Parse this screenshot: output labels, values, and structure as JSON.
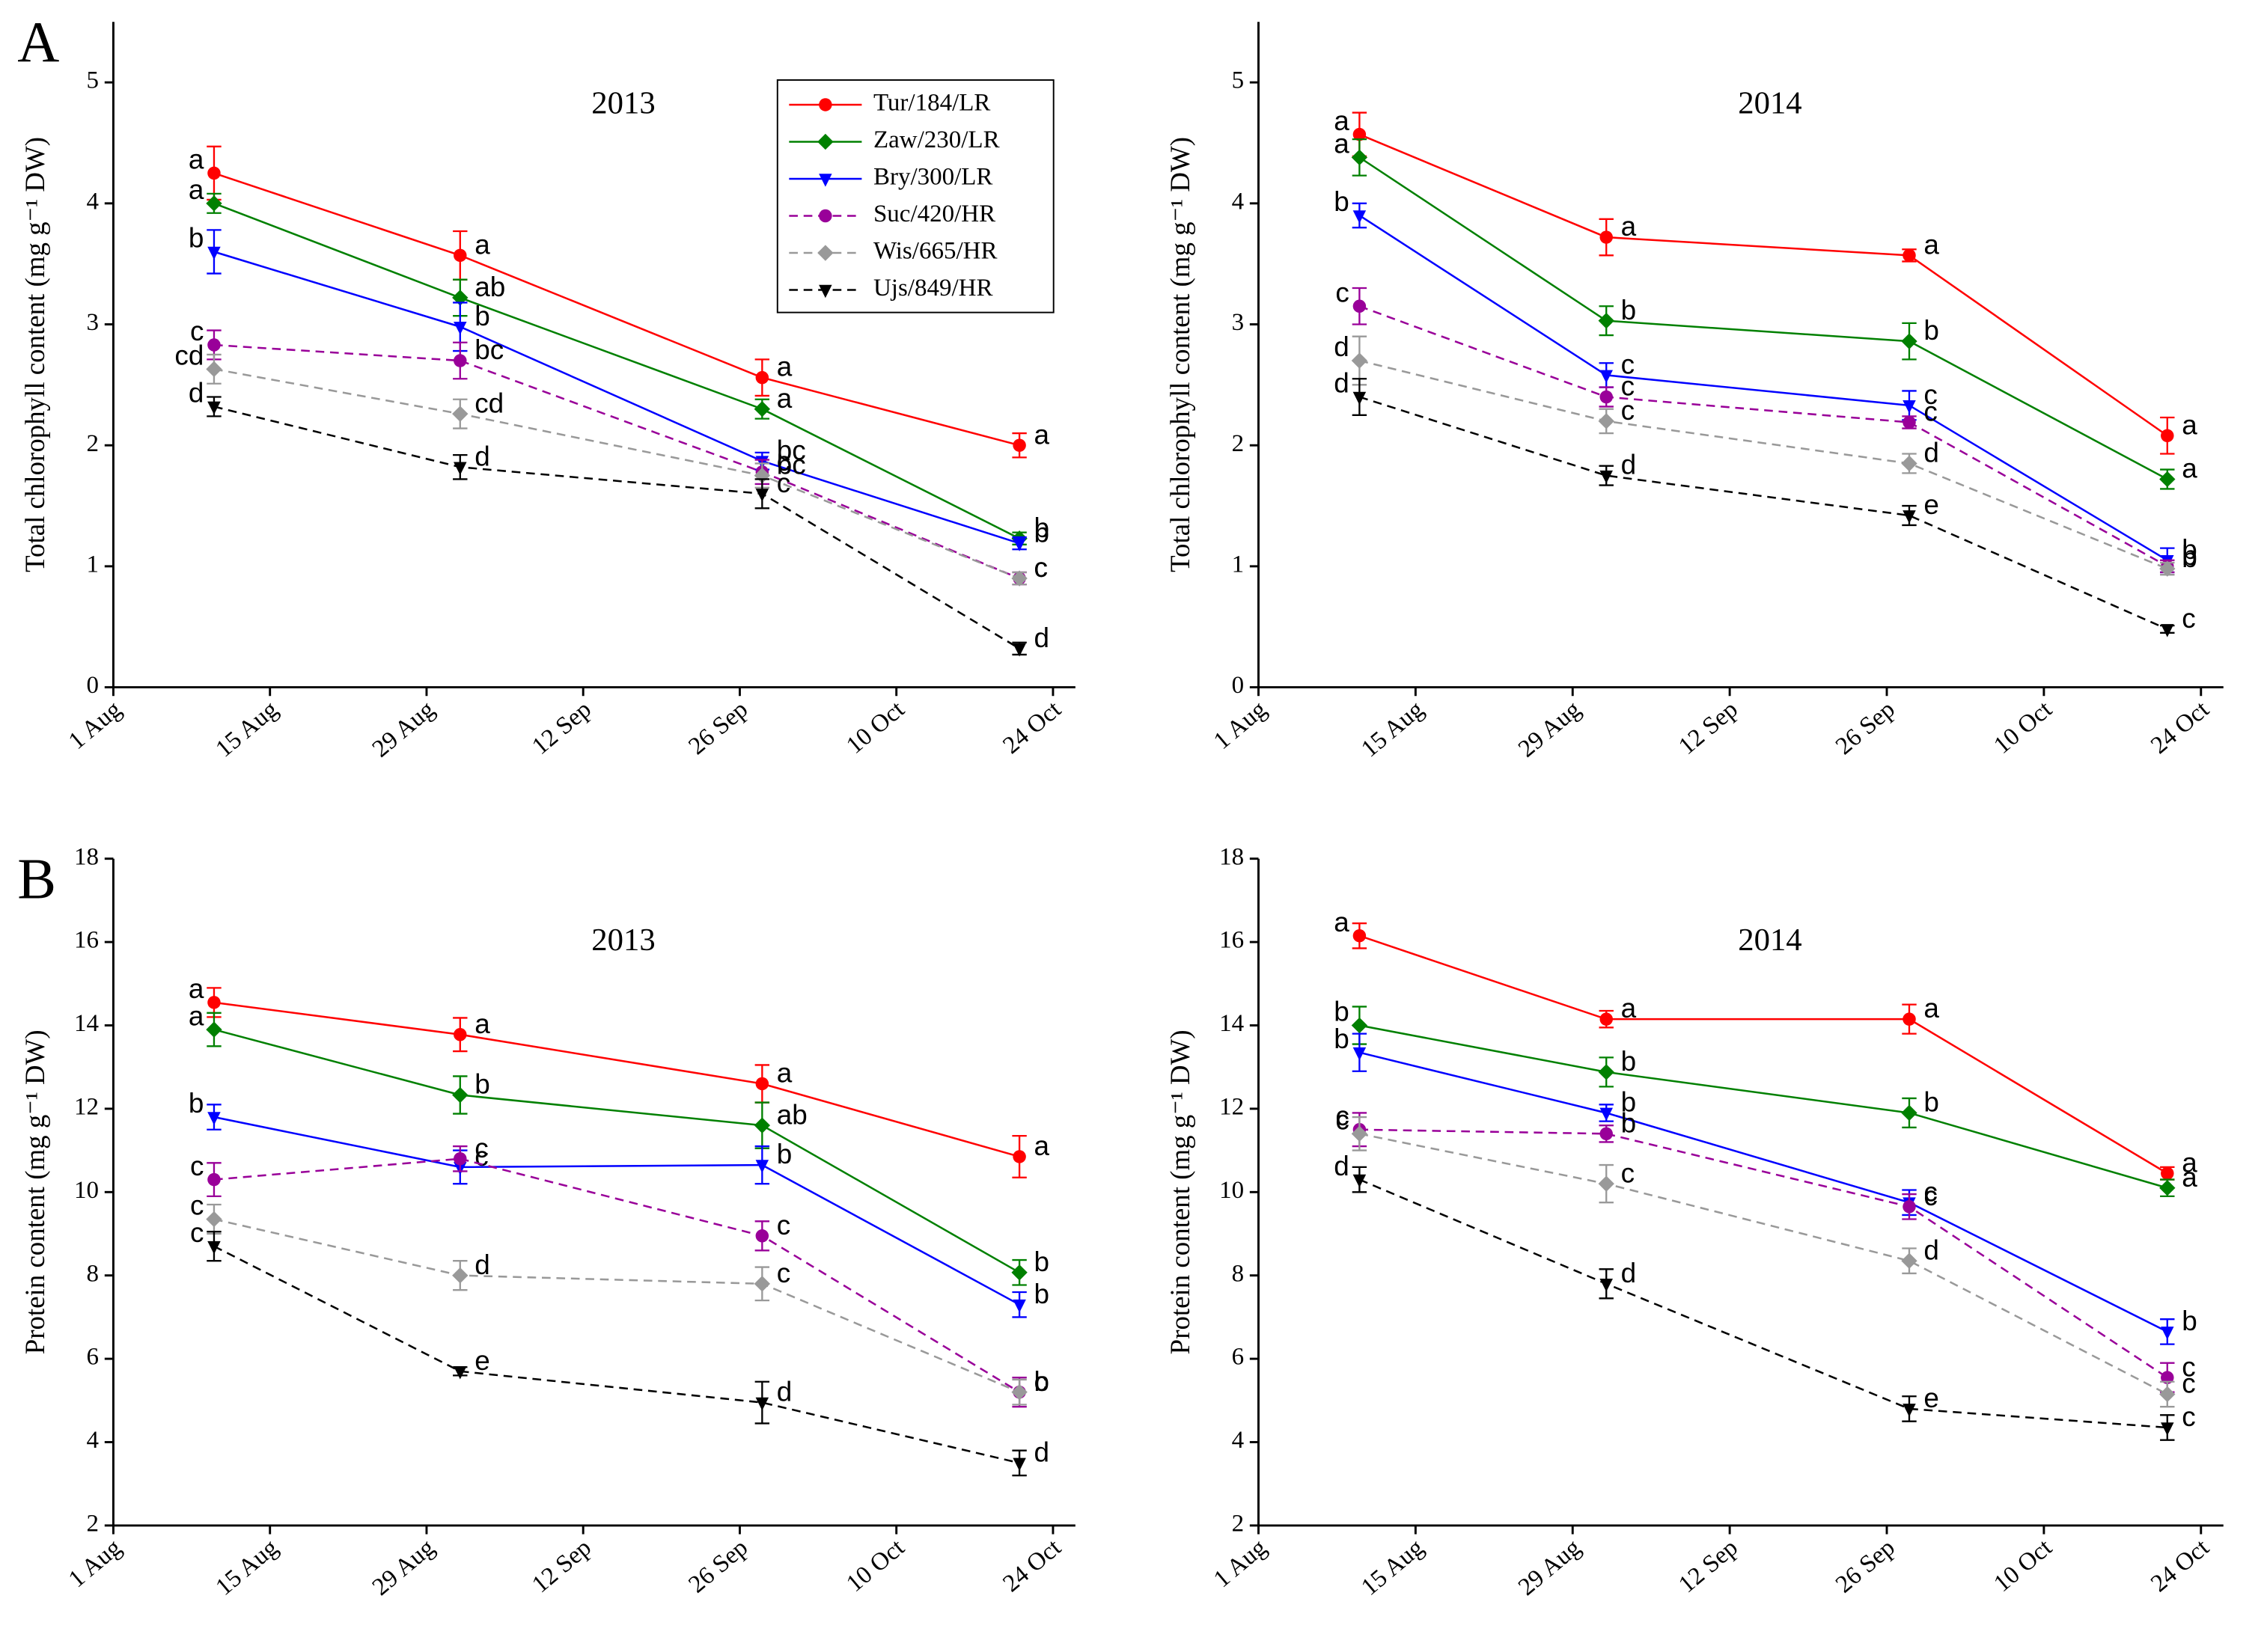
{
  "chart_data": [
    {
      "type": "line",
      "panel": "A",
      "title": "2013",
      "y_label": "Total chlorophyll content (mg g⁻¹ DW)",
      "legend": "upper right",
      "x": [
        "2013-08-10",
        "2013-09-01",
        "2013-09-28",
        "2013-10-21"
      ],
      "xlim": [
        "2013-08-01",
        "2013-10-26"
      ],
      "xticks": [
        {
          "value": "2013-08-01",
          "label": "1 Aug"
        },
        {
          "value": "2013-08-15",
          "label": "15 Aug"
        },
        {
          "value": "2013-08-29",
          "label": "29 Aug"
        },
        {
          "value": "2013-09-12",
          "label": "12 Sep"
        },
        {
          "value": "2013-09-26",
          "label": "26 Sep"
        },
        {
          "value": "2013-10-10",
          "label": "10 Oct"
        },
        {
          "value": "2013-10-24",
          "label": "24 Oct"
        }
      ],
      "ylim": [
        0,
        5.5
      ],
      "yticks": [
        0,
        1,
        2,
        3,
        4,
        5
      ],
      "series": [
        {
          "name": "Tur/184/LR",
          "color": "#ff0000",
          "marker": "circle",
          "line_style": "solid",
          "values": [
            4.25,
            3.57,
            2.56,
            2.0
          ],
          "errors": [
            0.22,
            0.2,
            0.15,
            0.1
          ],
          "letters": [
            "a",
            "a",
            "a",
            "a"
          ]
        },
        {
          "name": "Zaw/230/LR",
          "color": "#008000",
          "marker": "diamond",
          "line_style": "solid",
          "values": [
            4.0,
            3.22,
            2.3,
            1.23
          ],
          "errors": [
            0.08,
            0.15,
            0.08,
            0.05
          ],
          "letters": [
            "a",
            "ab",
            "a",
            "b"
          ]
        },
        {
          "name": "Bry/300/LR",
          "color": "#0000ff",
          "marker": "triangle-down",
          "line_style": "solid",
          "values": [
            3.6,
            2.98,
            1.87,
            1.19
          ],
          "errors": [
            0.18,
            0.2,
            0.07,
            0.05
          ],
          "letters": [
            "b",
            "b",
            "bc",
            "b"
          ]
        },
        {
          "name": "Suc/420/HR",
          "color": "#990099",
          "marker": "circle",
          "line_style": "dashed",
          "values": [
            2.83,
            2.7,
            1.78,
            0.9
          ],
          "errors": [
            0.12,
            0.15,
            0.1,
            0.05
          ],
          "letters": [
            "c",
            "bc",
            "c",
            "c"
          ]
        },
        {
          "name": "Wis/665/HR",
          "color": "#999999",
          "marker": "diamond",
          "line_style": "dashed",
          "values": [
            2.63,
            2.26,
            1.75,
            0.9
          ],
          "errors": [
            0.12,
            0.12,
            0.1,
            0.05
          ],
          "letters": [
            "cd",
            "cd",
            "bc",
            "c"
          ]
        },
        {
          "name": "Ujs/849/HR",
          "color": "#000000",
          "marker": "triangle-down",
          "line_style": "dashed",
          "values": [
            2.32,
            1.82,
            1.6,
            0.32
          ],
          "errors": [
            0.08,
            0.1,
            0.12,
            0.05
          ],
          "letters": [
            "d",
            "d",
            "c",
            "d"
          ]
        }
      ]
    },
    {
      "type": "line",
      "title": "2014",
      "y_label": "Total chlorophyll content (mg g⁻¹ DW)",
      "x": [
        "2014-08-10",
        "2014-09-01",
        "2014-09-28",
        "2014-10-21"
      ],
      "xlim": [
        "2014-08-01",
        "2014-10-26"
      ],
      "xticks": [
        {
          "value": "2014-08-01",
          "label": "1 Aug"
        },
        {
          "value": "2014-08-15",
          "label": "15 Aug"
        },
        {
          "value": "2014-08-29",
          "label": "29 Aug"
        },
        {
          "value": "2014-09-12",
          "label": "12 Sep"
        },
        {
          "value": "2014-09-26",
          "label": "26 Sep"
        },
        {
          "value": "2014-10-10",
          "label": "10 Oct"
        },
        {
          "value": "2014-10-24",
          "label": "24 Oct"
        }
      ],
      "ylim": [
        0,
        5.5
      ],
      "yticks": [
        0,
        1,
        2,
        3,
        4,
        5
      ],
      "series": [
        {
          "name": "Tur/184/LR",
          "color": "#ff0000",
          "marker": "circle",
          "line_style": "solid",
          "values": [
            4.57,
            3.72,
            3.57,
            2.08
          ],
          "errors": [
            0.18,
            0.15,
            0.05,
            0.15
          ],
          "letters": [
            "a",
            "a",
            "a",
            "a"
          ]
        },
        {
          "name": "Zaw/230/LR",
          "color": "#008000",
          "marker": "diamond",
          "line_style": "solid",
          "values": [
            4.38,
            3.03,
            2.86,
            1.72
          ],
          "errors": [
            0.15,
            0.12,
            0.15,
            0.08
          ],
          "letters": [
            "a",
            "b",
            "b",
            "a"
          ]
        },
        {
          "name": "Bry/300/LR",
          "color": "#0000ff",
          "marker": "triangle-down",
          "line_style": "solid",
          "values": [
            3.9,
            2.58,
            2.33,
            1.05
          ],
          "errors": [
            0.1,
            0.1,
            0.12,
            0.1
          ],
          "letters": [
            "b",
            "c",
            "c",
            "b"
          ]
        },
        {
          "name": "Suc/420/HR",
          "color": "#990099",
          "marker": "circle",
          "line_style": "dashed",
          "values": [
            3.15,
            2.4,
            2.19,
            1.0
          ],
          "errors": [
            0.15,
            0.08,
            0.05,
            0.05
          ],
          "letters": [
            "c",
            "c",
            "c",
            "b"
          ]
        },
        {
          "name": "Wis/665/HR",
          "color": "#999999",
          "marker": "diamond",
          "line_style": "dashed",
          "values": [
            2.7,
            2.2,
            1.85,
            0.98
          ],
          "errors": [
            0.2,
            0.1,
            0.08,
            0.05
          ],
          "letters": [
            "d",
            "c",
            "d",
            "b"
          ]
        },
        {
          "name": "Ujs/849/HR",
          "color": "#000000",
          "marker": "triangle-down",
          "line_style": "dashed",
          "values": [
            2.4,
            1.75,
            1.42,
            0.48
          ],
          "errors": [
            0.15,
            0.08,
            0.08,
            0.03
          ],
          "letters": [
            "d",
            "d",
            "e",
            "c"
          ]
        }
      ]
    },
    {
      "type": "line",
      "panel": "B",
      "title": "2013",
      "y_label": "Protein content (mg g⁻¹ DW)",
      "x": [
        "2013-08-10",
        "2013-09-01",
        "2013-09-28",
        "2013-10-21"
      ],
      "xlim": [
        "2013-08-01",
        "2013-10-26"
      ],
      "xticks": [
        {
          "value": "2013-08-01",
          "label": "1 Aug"
        },
        {
          "value": "2013-08-15",
          "label": "15 Aug"
        },
        {
          "value": "2013-08-29",
          "label": "29 Aug"
        },
        {
          "value": "2013-09-12",
          "label": "12 Sep"
        },
        {
          "value": "2013-09-26",
          "label": "26 Sep"
        },
        {
          "value": "2013-10-10",
          "label": "10 Oct"
        },
        {
          "value": "2013-10-24",
          "label": "24 Oct"
        }
      ],
      "ylim": [
        2,
        18
      ],
      "yticks": [
        2,
        4,
        6,
        8,
        10,
        12,
        14,
        16,
        18
      ],
      "series": [
        {
          "name": "Tur/184/LR",
          "color": "#ff0000",
          "marker": "circle",
          "line_style": "solid",
          "values": [
            14.55,
            13.78,
            12.6,
            10.85
          ],
          "errors": [
            0.35,
            0.4,
            0.45,
            0.5
          ],
          "letters": [
            "a",
            "a",
            "a",
            "a"
          ]
        },
        {
          "name": "Zaw/230/LR",
          "color": "#008000",
          "marker": "diamond",
          "line_style": "solid",
          "values": [
            13.9,
            12.33,
            11.6,
            8.07
          ],
          "errors": [
            0.4,
            0.45,
            0.55,
            0.3
          ],
          "letters": [
            "a",
            "b",
            "ab",
            "b"
          ]
        },
        {
          "name": "Bry/300/LR",
          "color": "#0000ff",
          "marker": "triangle-down",
          "line_style": "solid",
          "values": [
            11.8,
            10.6,
            10.65,
            7.3
          ],
          "errors": [
            0.3,
            0.4,
            0.45,
            0.3
          ],
          "letters": [
            "b",
            "c",
            "b",
            "b"
          ]
        },
        {
          "name": "Suc/420/HR",
          "color": "#990099",
          "marker": "circle",
          "line_style": "dashed",
          "values": [
            10.3,
            10.8,
            8.95,
            5.2
          ],
          "errors": [
            0.4,
            0.3,
            0.35,
            0.35
          ],
          "letters": [
            "c",
            "c",
            "c",
            "b"
          ]
        },
        {
          "name": "Wis/665/HR",
          "color": "#999999",
          "marker": "diamond",
          "line_style": "dashed",
          "values": [
            9.35,
            8.0,
            7.8,
            5.2
          ],
          "errors": [
            0.35,
            0.35,
            0.4,
            0.3
          ],
          "letters": [
            "c",
            "d",
            "c",
            "c"
          ]
        },
        {
          "name": "Ujs/849/HR",
          "color": "#000000",
          "marker": "triangle-down",
          "line_style": "dashed",
          "values": [
            8.7,
            5.7,
            4.95,
            3.5
          ],
          "errors": [
            0.35,
            0.1,
            0.5,
            0.3
          ],
          "letters": [
            "c",
            "e",
            "d",
            "d"
          ]
        }
      ]
    },
    {
      "type": "line",
      "title": "2014",
      "y_label": "Protein content (mg g⁻¹ DW)",
      "x": [
        "2014-08-10",
        "2014-09-01",
        "2014-09-28",
        "2014-10-21"
      ],
      "xlim": [
        "2014-08-01",
        "2014-10-26"
      ],
      "xticks": [
        {
          "value": "2014-08-01",
          "label": "1 Aug"
        },
        {
          "value": "2014-08-15",
          "label": "15 Aug"
        },
        {
          "value": "2014-08-29",
          "label": "29 Aug"
        },
        {
          "value": "2014-09-12",
          "label": "12 Sep"
        },
        {
          "value": "2014-09-26",
          "label": "26 Sep"
        },
        {
          "value": "2014-10-10",
          "label": "10 Oct"
        },
        {
          "value": "2014-10-24",
          "label": "24 Oct"
        }
      ],
      "ylim": [
        2,
        18
      ],
      "yticks": [
        2,
        4,
        6,
        8,
        10,
        12,
        14,
        16,
        18
      ],
      "series": [
        {
          "name": "Tur/184/LR",
          "color": "#ff0000",
          "marker": "circle",
          "line_style": "solid",
          "values": [
            16.15,
            14.15,
            14.15,
            10.45
          ],
          "errors": [
            0.3,
            0.2,
            0.35,
            0.15
          ],
          "letters": [
            "a",
            "a",
            "a",
            "a"
          ]
        },
        {
          "name": "Zaw/230/LR",
          "color": "#008000",
          "marker": "diamond",
          "line_style": "solid",
          "values": [
            14.0,
            12.88,
            11.9,
            10.1
          ],
          "errors": [
            0.45,
            0.35,
            0.35,
            0.2
          ],
          "letters": [
            "b",
            "b",
            "b",
            "a"
          ]
        },
        {
          "name": "Bry/300/LR",
          "color": "#0000ff",
          "marker": "triangle-down",
          "line_style": "solid",
          "values": [
            13.35,
            11.9,
            9.75,
            6.65
          ],
          "errors": [
            0.45,
            0.2,
            0.3,
            0.3
          ],
          "letters": [
            "b",
            "b",
            "c",
            "b"
          ]
        },
        {
          "name": "Suc/420/HR",
          "color": "#990099",
          "marker": "circle",
          "line_style": "dashed",
          "values": [
            11.5,
            11.4,
            9.65,
            5.55
          ],
          "errors": [
            0.4,
            0.2,
            0.3,
            0.35
          ],
          "letters": [
            "c",
            "b",
            "c",
            "c"
          ]
        },
        {
          "name": "Wis/665/HR",
          "color": "#999999",
          "marker": "diamond",
          "line_style": "dashed",
          "values": [
            11.4,
            10.2,
            8.35,
            5.15
          ],
          "errors": [
            0.4,
            0.45,
            0.3,
            0.3
          ],
          "letters": [
            "c",
            "c",
            "d",
            "c"
          ]
        },
        {
          "name": "Ujs/849/HR",
          "color": "#000000",
          "marker": "triangle-down",
          "line_style": "dashed",
          "values": [
            10.3,
            7.8,
            4.8,
            4.35
          ],
          "errors": [
            0.3,
            0.35,
            0.3,
            0.3
          ],
          "letters": [
            "d",
            "d",
            "e",
            "c"
          ]
        }
      ]
    }
  ]
}
